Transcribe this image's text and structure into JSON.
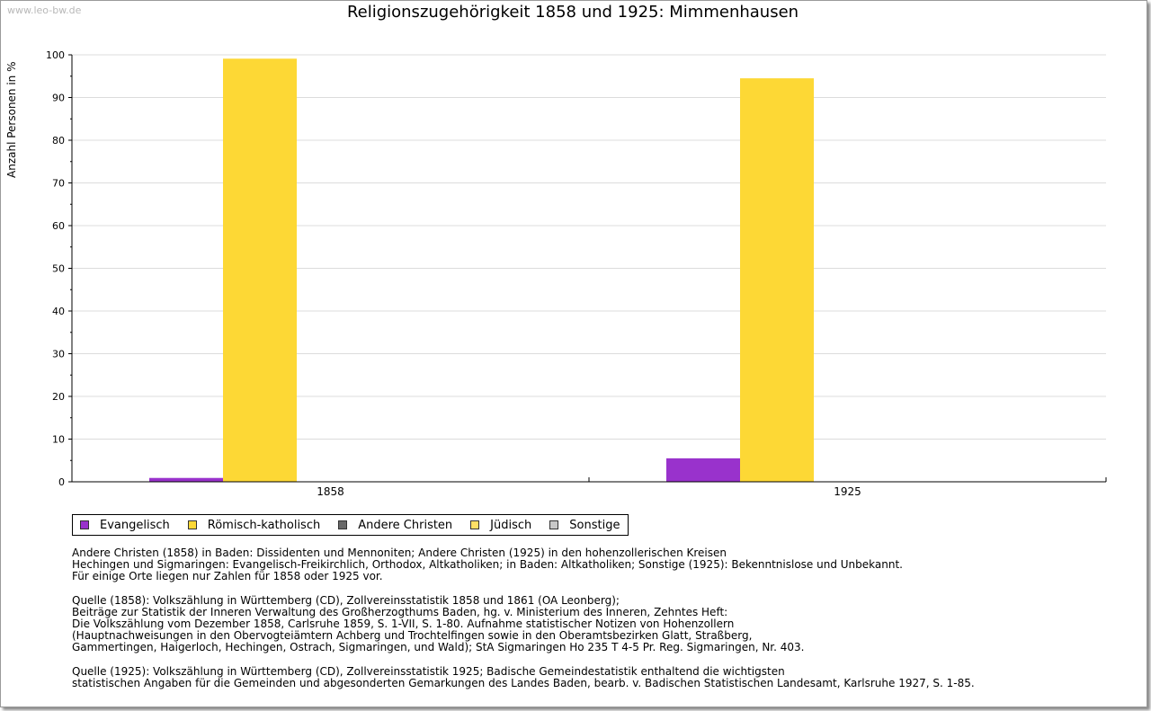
{
  "watermark": "www.leo-bw.de",
  "chart_data": {
    "type": "bar",
    "title": "Religionszugehörigkeit 1858 und 1925: Mimmenhausen",
    "xlabel": "",
    "ylabel": "Anzahl Personen in %",
    "ylim": [
      0,
      100
    ],
    "yticks": [
      0,
      10,
      20,
      30,
      40,
      50,
      60,
      70,
      80,
      90,
      100
    ],
    "categories": [
      "1858",
      "1925"
    ],
    "grid": true,
    "legend_position": "bottom",
    "series": [
      {
        "name": "Evangelisch",
        "color": "#9932cc",
        "values": [
          0.9,
          5.5
        ]
      },
      {
        "name": "Römisch-katholisch",
        "color": "#fdd835",
        "values": [
          99.1,
          94.5
        ]
      },
      {
        "name": "Andere Christen",
        "color": "#696969",
        "values": [
          0,
          0
        ]
      },
      {
        "name": "Jüdisch",
        "color": "#ffe066",
        "values": [
          0,
          0
        ]
      },
      {
        "name": "Sonstige",
        "color": "#c8c8c8",
        "values": [
          0,
          0
        ]
      }
    ]
  },
  "notes": [
    "Andere Christen (1858) in Baden: Dissidenten und Mennoniten; Andere Christen (1925) in den hohenzollerischen Kreisen\nHechingen und Sigmaringen: Evangelisch-Freikirchlich, Orthodox, Altkatholiken; in Baden: Altkatholiken; Sonstige (1925): Bekenntnislose und Unbekannt.\nFür einige Orte liegen nur Zahlen für 1858 oder 1925 vor.",
    "Quelle (1858): Volkszählung in Württemberg (CD), Zollvereinsstatistik 1858 und 1861 (OA Leonberg);\nBeiträge zur Statistik der Inneren Verwaltung des Großherzogthums Baden, hg. v. Ministerium des Inneren, Zehntes Heft:\nDie Volkszählung vom Dezember 1858, Carlsruhe 1859, S. 1-VII, S. 1-80. Aufnahme statistischer Notizen von Hohenzollern\n(Hauptnachweisungen in den Obervogteiämtern Achberg und Trochtelfingen sowie in den Oberamtsbezirken Glatt, Straßberg,\nGammertingen, Haigerloch, Hechingen, Ostrach, Sigmaringen, und Wald); StA Sigmaringen Ho 235 T 4-5 Pr. Reg. Sigmaringen, Nr. 403.",
    "Quelle (1925): Volkszählung in Württemberg (CD), Zollvereinsstatistik 1925; Badische Gemeindestatistik enthaltend die wichtigsten\nstatistischen Angaben für die Gemeinden und abgesonderten Gemarkungen des Landes Baden, bearb. v. Badischen Statistischen Landesamt, Karlsruhe 1927, S. 1-85."
  ]
}
